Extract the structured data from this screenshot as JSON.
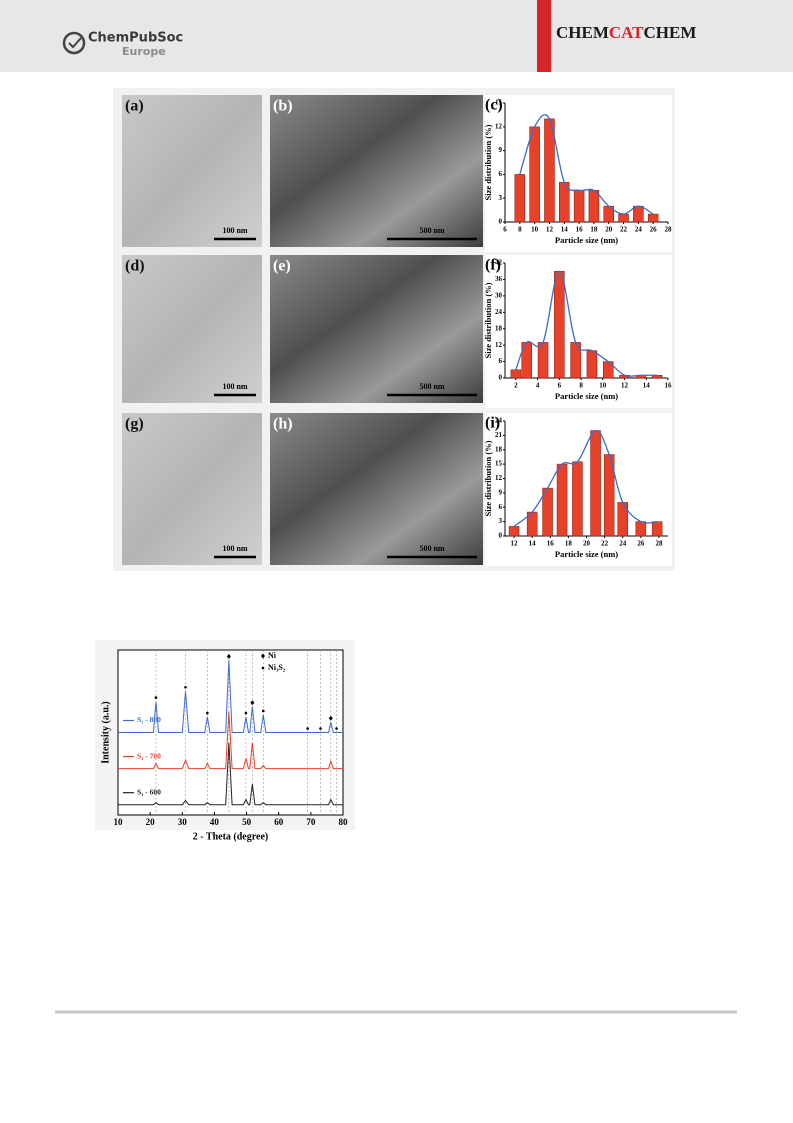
{
  "header": {
    "logo_name": "ChemPubSoc",
    "logo_region": "Europe",
    "journal": [
      "CHEM",
      "CAT",
      "CHEM"
    ]
  },
  "figure1": {
    "panels": [
      {
        "label": "(a)",
        "scale_bar": "100 nm"
      },
      {
        "label": "(b)",
        "scale_bar": "500 nm"
      },
      {
        "label": "(d)",
        "scale_bar": "100 nm"
      },
      {
        "label": "(e)",
        "scale_bar": "500 nm"
      },
      {
        "label": "(g)",
        "scale_bar": "100 nm"
      },
      {
        "label": "(h)",
        "scale_bar": "500 nm"
      }
    ]
  },
  "chart_data": [
    {
      "type": "bar",
      "panel_label": "(c)",
      "x_label": "Particle size (nm)",
      "y_label": "Size distribution (%)",
      "color": "#e8412a",
      "fit_color": "#3d6bc9",
      "x": [
        8,
        10,
        12,
        14,
        16,
        18,
        20,
        22,
        24,
        26
      ],
      "values": [
        6,
        12,
        13,
        5,
        4,
        4,
        2,
        1,
        2,
        1
      ],
      "xlim": [
        6,
        28
      ],
      "xticks": [
        6,
        8,
        10,
        12,
        14,
        16,
        18,
        20,
        22,
        24,
        26,
        28
      ],
      "ylim": [
        0,
        15
      ],
      "yticks": [
        0,
        3,
        6,
        9,
        12,
        15
      ]
    },
    {
      "type": "bar",
      "panel_label": "(f)",
      "x_label": "Particle size (nm)",
      "y_label": "Size distribution (%)",
      "color": "#e8412a",
      "fit_color": "#3d6bc9",
      "x": [
        2,
        3,
        4.5,
        6,
        7.5,
        9,
        10.5,
        12,
        13.5,
        15
      ],
      "values": [
        3,
        13,
        13,
        39,
        13,
        10,
        6,
        1,
        1,
        1
      ],
      "xlim": [
        1,
        16
      ],
      "xticks": [
        2,
        4,
        6,
        8,
        10,
        12,
        14,
        16
      ],
      "ylim": [
        0,
        42
      ],
      "yticks": [
        0,
        6,
        12,
        18,
        24,
        30,
        36,
        42
      ]
    },
    {
      "type": "bar",
      "panel_label": "(i)",
      "x_label": "Particle size (nm)",
      "y_label": "Size distribution (%)",
      "color": "#e8412a",
      "fit_color": "#3d6bc9",
      "x": [
        12,
        14,
        15.7,
        17.3,
        19,
        21,
        22.5,
        24,
        26,
        27.8
      ],
      "values": [
        2,
        5,
        10,
        15,
        15.5,
        22,
        17,
        7,
        3,
        3
      ],
      "xlim": [
        11,
        29
      ],
      "xticks": [
        12,
        14,
        16,
        18,
        20,
        22,
        24,
        26,
        28
      ],
      "ylim": [
        0,
        24
      ],
      "yticks": [
        0,
        3,
        6,
        9,
        12,
        15,
        18,
        21,
        24
      ]
    },
    {
      "type": "line",
      "x_label": "2 - Theta (degree)",
      "y_label": "Intensity (a.u.)",
      "x": [
        10,
        21,
        21.8,
        22.6,
        30,
        31,
        32,
        37,
        37.8,
        38.6,
        43.5,
        44.5,
        45.5,
        49,
        49.8,
        50.6,
        51,
        51.8,
        52.6,
        54.4,
        55.2,
        56,
        75.5,
        76.2,
        77,
        80
      ],
      "series": [
        {
          "name": "S₁ - 800",
          "color": "#3d6bc9",
          "values": [
            8,
            8,
            11,
            8,
            8,
            12,
            8,
            8,
            9.5,
            8,
            8,
            15,
            8,
            8,
            9.5,
            8,
            8,
            10.5,
            8,
            8,
            9.7,
            8,
            8,
            9,
            8,
            8
          ]
        },
        {
          "name": "S₁ - 700",
          "color": "#e8412a",
          "values": [
            4.5,
            4.5,
            5,
            4.5,
            4.5,
            5.3,
            4.5,
            4.5,
            5,
            4.5,
            4.5,
            10,
            4.5,
            4.5,
            5.5,
            4.5,
            4.5,
            7,
            4.5,
            4.5,
            4.8,
            4.5,
            4.5,
            5.2,
            4.5,
            4.5
          ]
        },
        {
          "name": "S₁ - 600",
          "color": "#222222",
          "values": [
            1,
            1,
            1.2,
            1,
            1,
            1.4,
            1,
            1,
            1.2,
            1,
            1,
            7,
            1,
            1,
            1.5,
            1,
            1,
            3,
            1,
            1,
            1.2,
            1,
            1,
            1.5,
            1,
            1
          ]
        }
      ],
      "reference_lines": [
        21.8,
        31,
        37.8,
        44.5,
        49.8,
        51.8,
        55.2,
        69,
        73,
        76.2,
        78
      ],
      "phases": [
        {
          "name": "Ni",
          "marker": "diamond",
          "peaks": [
            44.5,
            51.8,
            76.2
          ]
        },
        {
          "name": "Ni₃S₂",
          "marker": "dot",
          "peaks": [
            21.8,
            31,
            37.8,
            49.8,
            55.2,
            69,
            73,
            78
          ]
        }
      ],
      "xlim": [
        10,
        80
      ],
      "xticks": [
        10,
        20,
        30,
        40,
        50,
        60,
        70,
        80
      ],
      "ylim": [
        0,
        16
      ]
    }
  ]
}
